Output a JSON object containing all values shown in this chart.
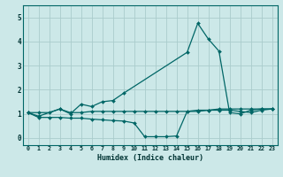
{
  "xlabel": "Humidex (Indice chaleur)",
  "background_color": "#cce8e8",
  "grid_color": "#aacccc",
  "line_color": "#006666",
  "xlim": [
    -0.5,
    23.5
  ],
  "ylim": [
    -0.3,
    5.5
  ],
  "yticks": [
    0,
    1,
    2,
    3,
    4,
    5
  ],
  "xticks": [
    0,
    1,
    2,
    3,
    4,
    5,
    6,
    7,
    8,
    9,
    10,
    11,
    12,
    13,
    14,
    15,
    16,
    17,
    18,
    19,
    20,
    21,
    22,
    23
  ],
  "series1_x": [
    0,
    1,
    3,
    4,
    5,
    6,
    7,
    8,
    9,
    15,
    16,
    17,
    18,
    19,
    20,
    21,
    22,
    23
  ],
  "series1_y": [
    1.05,
    0.9,
    1.2,
    1.0,
    1.4,
    1.3,
    1.5,
    1.55,
    1.85,
    3.55,
    4.75,
    4.1,
    3.6,
    1.05,
    1.0,
    1.15,
    1.2,
    1.2
  ],
  "series2_x": [
    0,
    1,
    2,
    3,
    4,
    5,
    6,
    7,
    8,
    9,
    10,
    11,
    12,
    13,
    14,
    15,
    16,
    17,
    18,
    19,
    20,
    21,
    22,
    23
  ],
  "series2_y": [
    1.05,
    1.05,
    1.05,
    1.2,
    1.05,
    1.05,
    1.1,
    1.1,
    1.1,
    1.1,
    1.1,
    1.1,
    1.1,
    1.1,
    1.1,
    1.1,
    1.15,
    1.15,
    1.2,
    1.2,
    1.2,
    1.2,
    1.2,
    1.2
  ],
  "series3_x": [
    0,
    1,
    2,
    3,
    4,
    5,
    6,
    7,
    8,
    9,
    10,
    11,
    12,
    13,
    14,
    15,
    16,
    17,
    18,
    19,
    20,
    21,
    22,
    23
  ],
  "series3_y": [
    1.05,
    0.85,
    0.85,
    0.85,
    0.82,
    0.82,
    0.78,
    0.75,
    0.72,
    0.7,
    0.62,
    0.05,
    0.05,
    0.05,
    0.08,
    1.1,
    1.1,
    1.15,
    1.15,
    1.15,
    1.1,
    1.05,
    1.15,
    1.2
  ]
}
